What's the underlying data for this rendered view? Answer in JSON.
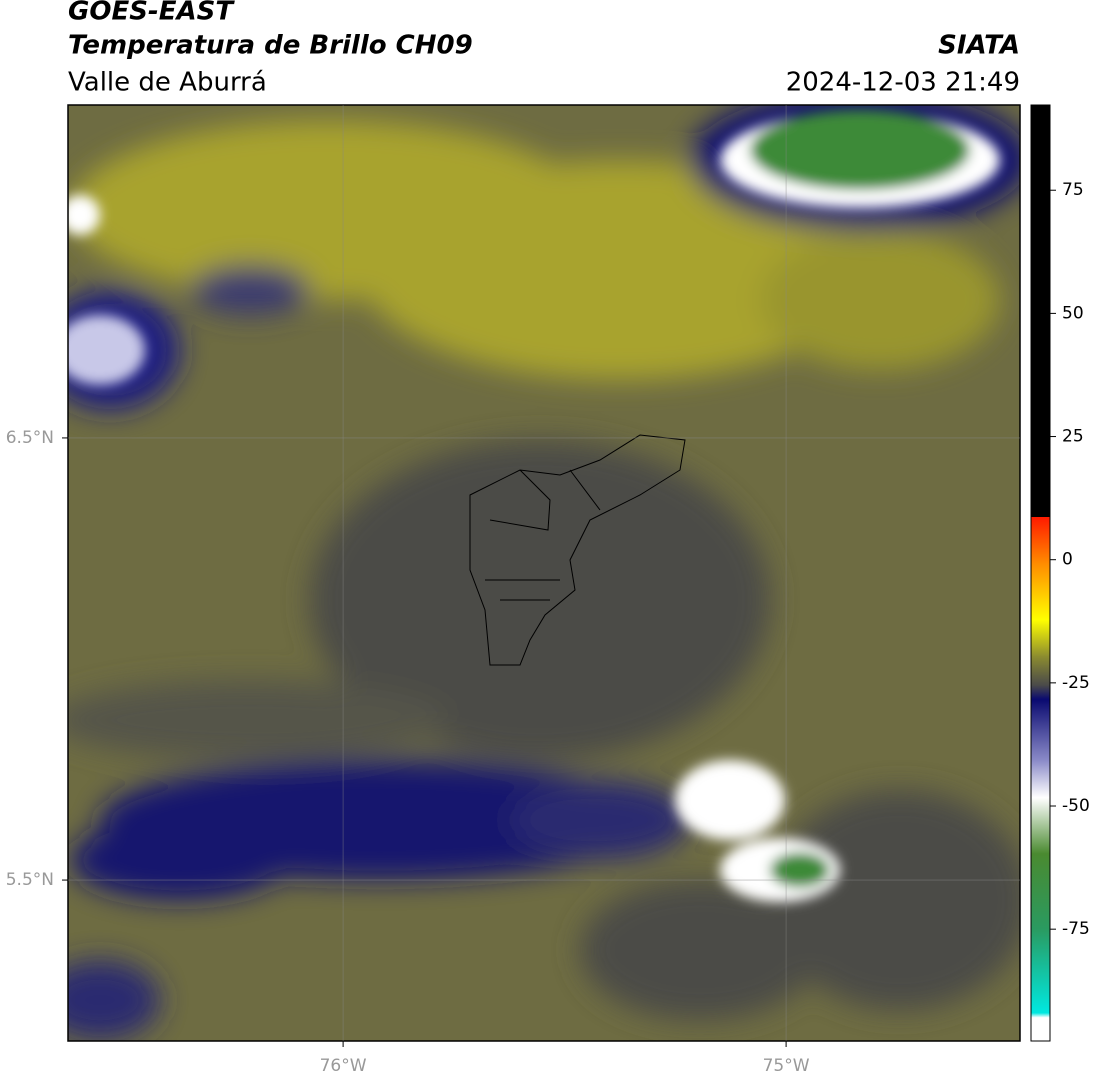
{
  "header": {
    "title": "GOES-EAST",
    "subtitle": "Temperatura de Brillo CH09",
    "region": "Valle de Aburrá",
    "source": "SIATA",
    "datetime": "2024-12-03 21:49"
  },
  "map": {
    "lon_lim": [
      -76.621,
      -74.472
    ],
    "lat_lim": [
      5.136,
      7.253
    ],
    "lat_ticks": [
      {
        "value": 6.5,
        "label": "6.5°N"
      },
      {
        "value": 5.5,
        "label": "5.5°N"
      }
    ],
    "lon_ticks": [
      {
        "value": -76,
        "label": "76°W"
      },
      {
        "value": -75,
        "label": "75°W"
      }
    ]
  },
  "colorbar": {
    "lim": [
      -97.7,
      92.3
    ],
    "ticks": [
      75,
      50,
      25,
      0,
      -25,
      -50,
      -75
    ]
  }
}
